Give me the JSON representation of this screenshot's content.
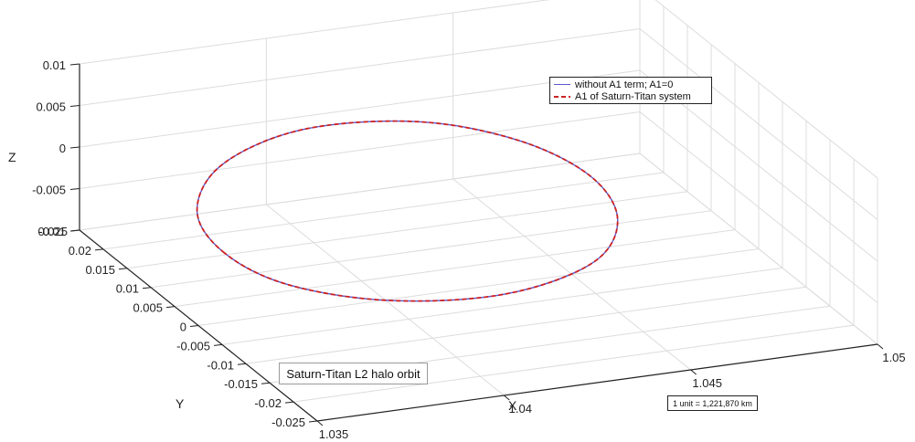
{
  "chart_data": {
    "type": "line",
    "projection": "3d",
    "title": "",
    "xlabel": "X",
    "ylabel": "Y",
    "zlabel": "Z",
    "xlim": [
      1.035,
      1.05
    ],
    "ylim": [
      -0.025,
      0.025
    ],
    "zlim": [
      -0.01,
      0.01
    ],
    "x_ticks": [
      "1.035",
      "1.04",
      "1.045",
      "1.05"
    ],
    "y_ticks": [
      "-0.025",
      "-0.02",
      "-0.015",
      "-0.01",
      "-0.005",
      "0",
      "0.005",
      "0.01",
      "0.015",
      "0.02",
      "0.025"
    ],
    "z_ticks": [
      "-0.01",
      "-0.005",
      "0",
      "0.005",
      "0.01"
    ],
    "grid": true,
    "legend_position": "top-right",
    "series": [
      {
        "name": "without A1 term; A1=0",
        "color": "#5a5ad0",
        "style": "solid",
        "x": [
          1.0357,
          1.0362,
          1.0379,
          1.0405,
          1.0432,
          1.0449,
          1.0455,
          1.0449,
          1.0432,
          1.0405,
          1.0379,
          1.0362,
          1.0357
        ],
        "y": [
          0.0,
          0.0097,
          0.0178,
          0.0215,
          0.0185,
          0.0104,
          0.0,
          -0.0104,
          -0.0185,
          -0.0215,
          -0.0178,
          -0.0097,
          0.0
        ],
        "z": [
          -0.0017,
          -0.0014,
          -0.0006,
          0.0003,
          0.001,
          0.0014,
          0.0015,
          0.0014,
          0.001,
          0.0003,
          -0.0006,
          -0.0014,
          -0.0017
        ]
      },
      {
        "name": "A1 of Saturn-Titan system",
        "color": "#cc2222",
        "style": "dashed",
        "x": [
          1.0357,
          1.0362,
          1.0379,
          1.0405,
          1.0432,
          1.0449,
          1.0455,
          1.0449,
          1.0432,
          1.0405,
          1.0379,
          1.0362,
          1.0357
        ],
        "y": [
          0.0,
          0.0097,
          0.0178,
          0.0215,
          0.0185,
          0.0104,
          0.0,
          -0.0104,
          -0.0185,
          -0.0215,
          -0.0178,
          -0.0097,
          0.0
        ],
        "z": [
          -0.0017,
          -0.0014,
          -0.0006,
          0.0003,
          0.001,
          0.0014,
          0.0015,
          0.0014,
          0.001,
          0.0003,
          -0.0006,
          -0.0014,
          -0.0017
        ]
      }
    ],
    "annotations": [
      "Saturn-Titan L2 halo orbit",
      "1 unit = 1,221,870 km"
    ]
  }
}
